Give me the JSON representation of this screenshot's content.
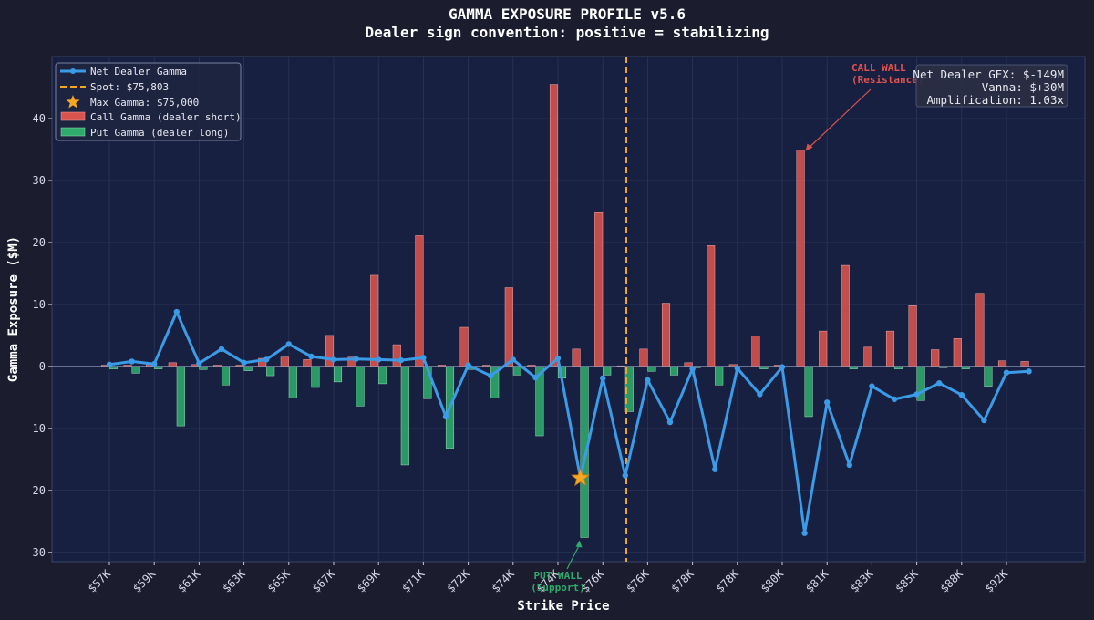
{
  "header": {
    "title": "GAMMA EXPOSURE PROFILE v5.6",
    "subtitle": "Dealer sign convention: positive = stabilizing"
  },
  "colors": {
    "call": "#d9534f",
    "put": "#2eaa6a",
    "net": "#3b9be6",
    "spot": "#f5a623",
    "star": "#f5a623",
    "plot_bg": "#172040",
    "page_bg": "#1b1d2e"
  },
  "legend": {
    "items": [
      {
        "label": "Net Dealer Gamma",
        "kind": "line"
      },
      {
        "label": "Spot: $75,803",
        "kind": "dash"
      },
      {
        "label": "Max Gamma: $75,000",
        "kind": "star"
      },
      {
        "label": "Call Gamma (dealer short)",
        "kind": "call"
      },
      {
        "label": "Put Gamma (dealer long)",
        "kind": "put"
      }
    ]
  },
  "info_box": {
    "lines": [
      "Net Dealer GEX: $-149M",
      "Vanna: $+30M",
      "Amplification: 1.03x"
    ]
  },
  "annotations": {
    "call_wall": [
      "CALL WALL",
      "(Resistance)"
    ],
    "put_wall": [
      "PUT WALL",
      "(Support)"
    ]
  },
  "chart_data": {
    "type": "bar",
    "xlabel": "Strike Price",
    "ylabel": "Gamma Exposure ($M)",
    "ylim": [
      -31.5,
      50
    ],
    "yticks": [
      -30,
      -20,
      -10,
      0,
      10,
      20,
      30,
      40
    ],
    "xtick_labels": [
      "$57K",
      "$59K",
      "$61K",
      "$63K",
      "$65K",
      "$67K",
      "$69K",
      "$71K",
      "$72K",
      "$74K",
      "$74K",
      "$76K",
      "$76K",
      "$78K",
      "$78K",
      "$80K",
      "$81K",
      "$83K",
      "$85K",
      "$88K",
      "$92K"
    ],
    "spot_index": 23.05,
    "max_gamma_index": 21,
    "max_gamma_value": -18,
    "call_wall_index": 31,
    "put_wall_index": 21,
    "series": [
      {
        "name": "Call Gamma (dealer short)",
        "values": [
          0.2,
          0.2,
          0.3,
          0.6,
          0.3,
          0.2,
          0.2,
          1.3,
          1.5,
          1.1,
          5.0,
          1.5,
          14.7,
          3.5,
          21.1,
          0.2,
          6.3,
          0.2,
          12.7,
          0.2,
          45.5,
          2.8,
          24.8,
          0.1,
          2.8,
          10.2,
          0.6,
          19.5,
          0.3,
          4.9,
          0.2,
          34.9,
          5.7,
          16.3,
          3.1,
          5.7,
          9.8,
          2.7,
          4.5,
          11.8,
          0.9,
          0.8
        ]
      },
      {
        "name": "Put Gamma (dealer long)",
        "values": [
          -0.4,
          -1.1,
          -0.4,
          -9.6,
          -0.5,
          -3.0,
          -0.7,
          -1.5,
          -5.1,
          -3.4,
          -2.5,
          -6.4,
          -2.8,
          -15.9,
          -5.2,
          -13.2,
          -0.5,
          -5.1,
          -1.4,
          -11.2,
          -1.9,
          -27.6,
          -1.4,
          -7.3,
          -0.8,
          -1.4,
          -0.2,
          -3.0,
          -0.1,
          -0.4,
          -0.1,
          -8.1,
          -0.1,
          -0.4,
          -0.1,
          -0.4,
          -5.5,
          -0.2,
          -0.4,
          -3.2,
          -0.1,
          -0.1
        ]
      },
      {
        "name": "Net Dealer Gamma",
        "values": [
          0.3,
          0.8,
          0.4,
          8.8,
          0.5,
          2.8,
          0.6,
          1.1,
          3.6,
          1.6,
          1.1,
          1.2,
          1.1,
          1.0,
          1.4,
          -8.1,
          0.2,
          -1.5,
          1.1,
          -1.8,
          1.3,
          -18.0,
          -1.9,
          -17.6,
          -2.2,
          -9.0,
          -0.4,
          -16.6,
          -0.3,
          -4.5,
          -0.1,
          -26.9,
          -5.8,
          -15.9,
          -3.2,
          -5.3,
          -4.5,
          -2.7,
          -4.6,
          -8.7,
          -1.0,
          -0.8
        ]
      }
    ]
  }
}
